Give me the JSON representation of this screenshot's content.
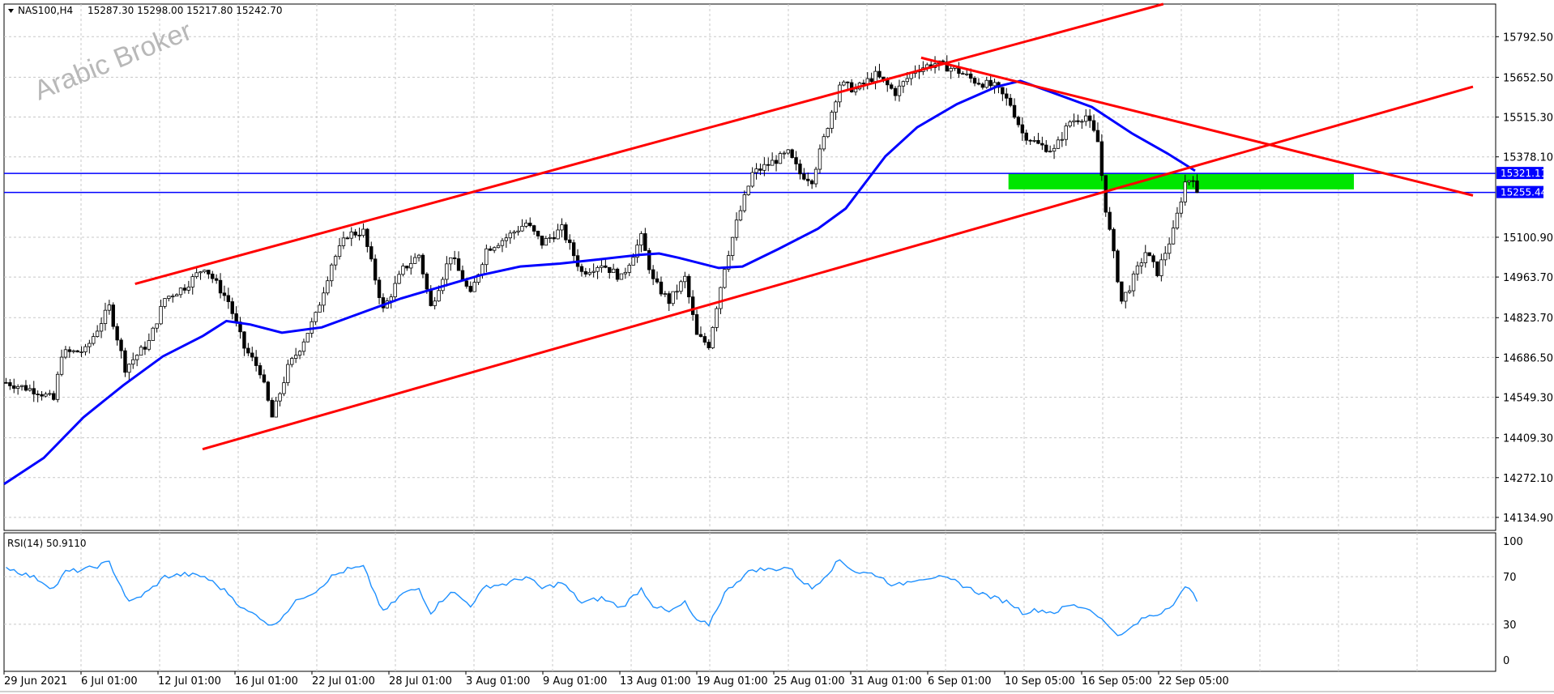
{
  "header": {
    "symbol": "NAS100,H4",
    "ohlc": "15287.30 15298.00 15217.80 15242.70"
  },
  "watermark": "Arabic Broker",
  "price_axis": {
    "ticks": [
      "15792.50",
      "15652.50",
      "15515.30",
      "15378.10",
      "15100.90",
      "14963.70",
      "14823.70",
      "14686.50",
      "14549.30",
      "14409.30",
      "14272.10",
      "14134.90"
    ],
    "tick_values": [
      15792.5,
      15652.5,
      15515.3,
      15378.1,
      15100.9,
      14963.7,
      14823.7,
      14686.5,
      14549.3,
      14409.3,
      14272.1,
      14134.9
    ],
    "ylim": [
      14090,
      15905
    ]
  },
  "rsi_panel": {
    "label": "RSI(14) 50.9110",
    "levels": [
      "100",
      "70",
      "30",
      "0"
    ],
    "level_values": [
      100,
      70,
      30,
      0
    ]
  },
  "time_axis": {
    "labels": [
      "29 Jun 2021",
      "6 Jul 01:00",
      "12 Jul 01:00",
      "16 Jul 01:00",
      "22 Jul 01:00",
      "28 Jul 01:00",
      "3 Aug 01:00",
      "9 Aug 01:00",
      "13 Aug 01:00",
      "19 Aug 01:00",
      "25 Aug 01:00",
      "31 Aug 01:00",
      "6 Sep 01:00",
      "10 Sep 05:00",
      "16 Sep 05:00",
      "22 Sep 05:00"
    ]
  },
  "hlines": [
    {
      "price": 15321.11,
      "label": "15321.11",
      "color": "#0000ff"
    },
    {
      "price": 15255.44,
      "label": "15255.44",
      "color": "#0000ff"
    }
  ],
  "zone": {
    "low": 15266,
    "high": 15321,
    "start_bar": 253,
    "end_bar": 340,
    "color": "#00e600"
  },
  "colors": {
    "candle": "#000000",
    "ma": "#0000ff",
    "trendline": "#ff0000",
    "rsi": "#1e90ff",
    "hline": "#0000ff",
    "zone": "#00e600",
    "grid": "#c8c8c8"
  },
  "chart_data": [
    {
      "type": "candlestick",
      "title": "NAS100,H4",
      "timeframe": "H4",
      "x_range_bars": [
        0,
        370
      ],
      "ylim": [
        14090,
        15905
      ],
      "grid": true,
      "close_path": [
        {
          "bar": 0,
          "close": 14600
        },
        {
          "bar": 8,
          "close": 14570
        },
        {
          "bar": 12,
          "close": 14540
        },
        {
          "bar": 14,
          "close": 14700
        },
        {
          "bar": 20,
          "close": 14710
        },
        {
          "bar": 26,
          "close": 14860
        },
        {
          "bar": 30,
          "close": 14650
        },
        {
          "bar": 36,
          "close": 14740
        },
        {
          "bar": 40,
          "close": 14890
        },
        {
          "bar": 45,
          "close": 14930
        },
        {
          "bar": 50,
          "close": 15000
        },
        {
          "bar": 56,
          "close": 14880
        },
        {
          "bar": 60,
          "close": 14720
        },
        {
          "bar": 64,
          "close": 14640
        },
        {
          "bar": 67,
          "close": 14480
        },
        {
          "bar": 71,
          "close": 14650
        },
        {
          "bar": 74,
          "close": 14720
        },
        {
          "bar": 78,
          "close": 14830
        },
        {
          "bar": 82,
          "close": 15010
        },
        {
          "bar": 86,
          "close": 15110
        },
        {
          "bar": 90,
          "close": 15120
        },
        {
          "bar": 95,
          "close": 14850
        },
        {
          "bar": 100,
          "close": 14990
        },
        {
          "bar": 104,
          "close": 15040
        },
        {
          "bar": 107,
          "close": 14860
        },
        {
          "bar": 112,
          "close": 15040
        },
        {
          "bar": 117,
          "close": 14900
        },
        {
          "bar": 121,
          "close": 15060
        },
        {
          "bar": 126,
          "close": 15100
        },
        {
          "bar": 131,
          "close": 15150
        },
        {
          "bar": 135,
          "close": 15080
        },
        {
          "bar": 140,
          "close": 15130
        },
        {
          "bar": 145,
          "close": 14980
        },
        {
          "bar": 150,
          "close": 15010
        },
        {
          "bar": 155,
          "close": 14960
        },
        {
          "bar": 160,
          "close": 15100
        },
        {
          "bar": 163,
          "close": 14950
        },
        {
          "bar": 167,
          "close": 14880
        },
        {
          "bar": 171,
          "close": 14960
        },
        {
          "bar": 174,
          "close": 14760
        },
        {
          "bar": 177,
          "close": 14730
        },
        {
          "bar": 181,
          "close": 15000
        },
        {
          "bar": 184,
          "close": 15150
        },
        {
          "bar": 188,
          "close": 15320
        },
        {
          "bar": 193,
          "close": 15360
        },
        {
          "bar": 197,
          "close": 15390
        },
        {
          "bar": 200,
          "close": 15320
        },
        {
          "bar": 203,
          "close": 15300
        },
        {
          "bar": 206,
          "close": 15440
        },
        {
          "bar": 210,
          "close": 15630
        },
        {
          "bar": 214,
          "close": 15610
        },
        {
          "bar": 219,
          "close": 15660
        },
        {
          "bar": 224,
          "close": 15600
        },
        {
          "bar": 229,
          "close": 15680
        },
        {
          "bar": 234,
          "close": 15700
        },
        {
          "bar": 239,
          "close": 15680
        },
        {
          "bar": 244,
          "close": 15640
        },
        {
          "bar": 249,
          "close": 15620
        },
        {
          "bar": 253,
          "close": 15560
        },
        {
          "bar": 256,
          "close": 15460
        },
        {
          "bar": 260,
          "close": 15420
        },
        {
          "bar": 264,
          "close": 15400
        },
        {
          "bar": 268,
          "close": 15500
        },
        {
          "bar": 272,
          "close": 15520
        },
        {
          "bar": 275,
          "close": 15430
        },
        {
          "bar": 277,
          "close": 15200
        },
        {
          "bar": 281,
          "close": 14880
        },
        {
          "bar": 283,
          "close": 14930
        },
        {
          "bar": 287,
          "close": 15050
        },
        {
          "bar": 290,
          "close": 14980
        },
        {
          "bar": 294,
          "close": 15120
        },
        {
          "bar": 297,
          "close": 15290
        },
        {
          "bar": 299,
          "close": 15310
        },
        {
          "bar": 300,
          "close": 15243
        }
      ],
      "moving_average": [
        {
          "bar": 0,
          "value": 14250
        },
        {
          "bar": 10,
          "value": 14340
        },
        {
          "bar": 20,
          "value": 14480
        },
        {
          "bar": 30,
          "value": 14590
        },
        {
          "bar": 40,
          "value": 14690
        },
        {
          "bar": 50,
          "value": 14760
        },
        {
          "bar": 56,
          "value": 14812
        },
        {
          "bar": 62,
          "value": 14800
        },
        {
          "bar": 70,
          "value": 14772
        },
        {
          "bar": 80,
          "value": 14790
        },
        {
          "bar": 90,
          "value": 14840
        },
        {
          "bar": 100,
          "value": 14890
        },
        {
          "bar": 110,
          "value": 14930
        },
        {
          "bar": 120,
          "value": 14970
        },
        {
          "bar": 130,
          "value": 15000
        },
        {
          "bar": 140,
          "value": 15010
        },
        {
          "bar": 150,
          "value": 15025
        },
        {
          "bar": 160,
          "value": 15040
        },
        {
          "bar": 165,
          "value": 15045
        },
        {
          "bar": 170,
          "value": 15030
        },
        {
          "bar": 180,
          "value": 14995
        },
        {
          "bar": 186,
          "value": 15000
        },
        {
          "bar": 195,
          "value": 15060
        },
        {
          "bar": 205,
          "value": 15130
        },
        {
          "bar": 212,
          "value": 15200
        },
        {
          "bar": 222,
          "value": 15380
        },
        {
          "bar": 230,
          "value": 15480
        },
        {
          "bar": 240,
          "value": 15560
        },
        {
          "bar": 250,
          "value": 15620
        },
        {
          "bar": 256,
          "value": 15640
        },
        {
          "bar": 264,
          "value": 15600
        },
        {
          "bar": 274,
          "value": 15550
        },
        {
          "bar": 284,
          "value": 15460
        },
        {
          "bar": 293,
          "value": 15390
        },
        {
          "bar": 300,
          "value": 15330
        }
      ],
      "trendlines": [
        {
          "from": {
            "bar": 33,
            "price": 14940
          },
          "to": {
            "bar": 292,
            "price": 15905
          }
        },
        {
          "from": {
            "bar": 50,
            "price": 14370
          },
          "to": {
            "bar": 370,
            "price": 15620
          }
        },
        {
          "from": {
            "bar": 231,
            "price": 15720
          },
          "to": {
            "bar": 370,
            "price": 15245
          }
        }
      ],
      "price_labels": [
        "15792.50",
        "15652.50",
        "15515.30",
        "15378.10",
        "15100.90",
        "14963.70",
        "14823.70",
        "14686.50",
        "14549.30",
        "14409.30",
        "14272.10",
        "14134.90"
      ]
    },
    {
      "type": "line",
      "title": "RSI(14) 50.9110",
      "ylim": [
        0,
        100
      ],
      "levels": [
        100,
        70,
        30,
        0
      ],
      "series": [
        {
          "values": [
            {
              "bar": 0,
              "value": 78
            },
            {
              "bar": 8,
              "value": 68
            },
            {
              "bar": 12,
              "value": 60
            },
            {
              "bar": 15,
              "value": 74
            },
            {
              "bar": 20,
              "value": 76
            },
            {
              "bar": 26,
              "value": 82
            },
            {
              "bar": 31,
              "value": 48
            },
            {
              "bar": 36,
              "value": 58
            },
            {
              "bar": 40,
              "value": 70
            },
            {
              "bar": 45,
              "value": 72
            },
            {
              "bar": 50,
              "value": 70
            },
            {
              "bar": 56,
              "value": 56
            },
            {
              "bar": 60,
              "value": 42
            },
            {
              "bar": 64,
              "value": 36
            },
            {
              "bar": 67,
              "value": 28
            },
            {
              "bar": 71,
              "value": 42
            },
            {
              "bar": 74,
              "value": 52
            },
            {
              "bar": 78,
              "value": 58
            },
            {
              "bar": 82,
              "value": 70
            },
            {
              "bar": 86,
              "value": 76
            },
            {
              "bar": 90,
              "value": 78
            },
            {
              "bar": 95,
              "value": 40
            },
            {
              "bar": 100,
              "value": 56
            },
            {
              "bar": 104,
              "value": 60
            },
            {
              "bar": 107,
              "value": 40
            },
            {
              "bar": 112,
              "value": 58
            },
            {
              "bar": 117,
              "value": 46
            },
            {
              "bar": 121,
              "value": 62
            },
            {
              "bar": 126,
              "value": 64
            },
            {
              "bar": 131,
              "value": 70
            },
            {
              "bar": 135,
              "value": 60
            },
            {
              "bar": 140,
              "value": 65
            },
            {
              "bar": 145,
              "value": 48
            },
            {
              "bar": 150,
              "value": 52
            },
            {
              "bar": 155,
              "value": 44
            },
            {
              "bar": 160,
              "value": 60
            },
            {
              "bar": 163,
              "value": 46
            },
            {
              "bar": 167,
              "value": 40
            },
            {
              "bar": 171,
              "value": 48
            },
            {
              "bar": 174,
              "value": 32
            },
            {
              "bar": 177,
              "value": 30
            },
            {
              "bar": 181,
              "value": 56
            },
            {
              "bar": 184,
              "value": 66
            },
            {
              "bar": 188,
              "value": 76
            },
            {
              "bar": 193,
              "value": 76
            },
            {
              "bar": 197,
              "value": 78
            },
            {
              "bar": 200,
              "value": 68
            },
            {
              "bar": 203,
              "value": 60
            },
            {
              "bar": 206,
              "value": 70
            },
            {
              "bar": 210,
              "value": 84
            },
            {
              "bar": 214,
              "value": 74
            },
            {
              "bar": 219,
              "value": 72
            },
            {
              "bar": 224,
              "value": 62
            },
            {
              "bar": 229,
              "value": 68
            },
            {
              "bar": 234,
              "value": 70
            },
            {
              "bar": 239,
              "value": 66
            },
            {
              "bar": 244,
              "value": 58
            },
            {
              "bar": 249,
              "value": 52
            },
            {
              "bar": 253,
              "value": 48
            },
            {
              "bar": 256,
              "value": 40
            },
            {
              "bar": 260,
              "value": 42
            },
            {
              "bar": 264,
              "value": 40
            },
            {
              "bar": 268,
              "value": 46
            },
            {
              "bar": 272,
              "value": 44
            },
            {
              "bar": 275,
              "value": 38
            },
            {
              "bar": 277,
              "value": 30
            },
            {
              "bar": 281,
              "value": 20
            },
            {
              "bar": 283,
              "value": 26
            },
            {
              "bar": 287,
              "value": 36
            },
            {
              "bar": 290,
              "value": 38
            },
            {
              "bar": 294,
              "value": 48
            },
            {
              "bar": 297,
              "value": 60
            },
            {
              "bar": 299,
              "value": 58
            },
            {
              "bar": 300,
              "value": 51
            }
          ]
        }
      ]
    }
  ]
}
